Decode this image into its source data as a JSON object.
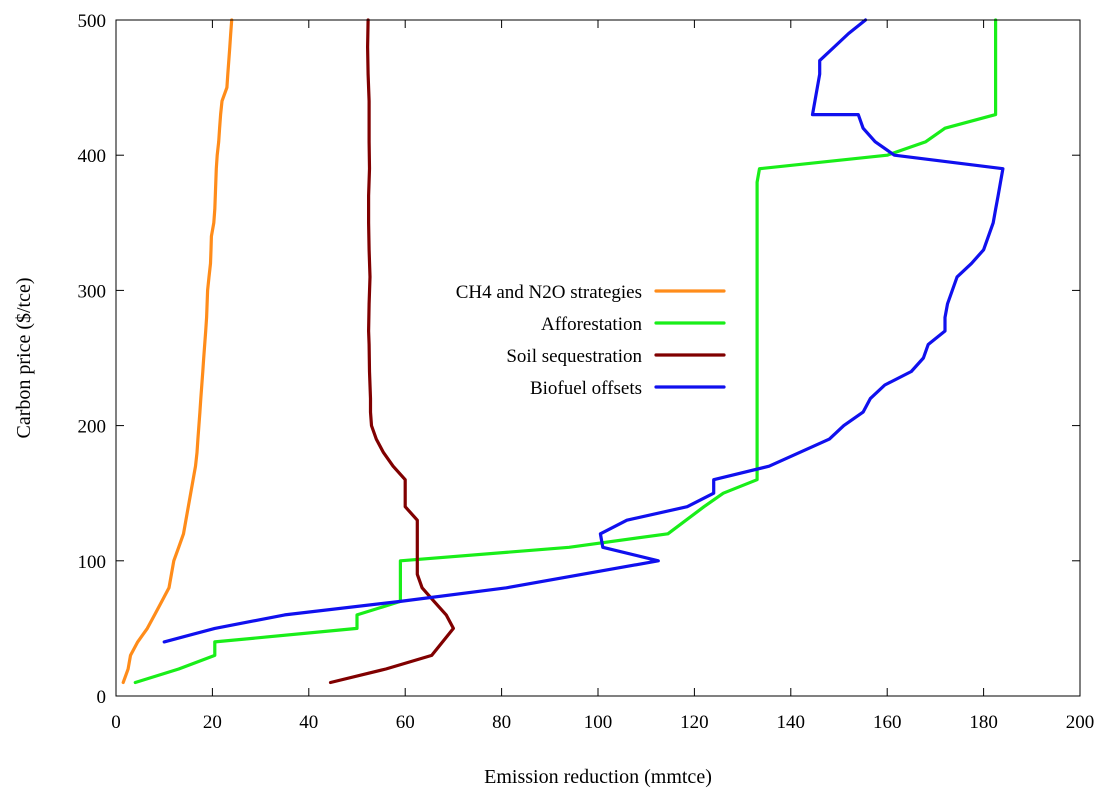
{
  "chart_data": {
    "type": "line",
    "xlabel": "Emission reduction (mmtce)",
    "ylabel": "Carbon price ($/tce)",
    "xlim": [
      0,
      200
    ],
    "ylim": [
      0,
      500
    ],
    "xticks": [
      0,
      20,
      40,
      60,
      80,
      100,
      120,
      140,
      160,
      180,
      200
    ],
    "yticks": [
      0,
      100,
      200,
      300,
      400,
      500
    ],
    "grid": false,
    "legend_position": "center",
    "series": [
      {
        "name": "CH4 and N2O strategies",
        "color": "#ff8c1a",
        "points": [
          [
            1.5,
            10
          ],
          [
            2.5,
            20
          ],
          [
            3.0,
            30
          ],
          [
            4.5,
            40
          ],
          [
            6.5,
            50
          ],
          [
            8.0,
            60
          ],
          [
            9.5,
            70
          ],
          [
            11.0,
            80
          ],
          [
            11.5,
            90
          ],
          [
            12.0,
            100
          ],
          [
            13.0,
            110
          ],
          [
            14.0,
            120
          ],
          [
            14.5,
            130
          ],
          [
            15.0,
            140
          ],
          [
            15.5,
            150
          ],
          [
            16.0,
            160
          ],
          [
            16.5,
            170
          ],
          [
            16.8,
            180
          ],
          [
            17.0,
            190
          ],
          [
            17.2,
            200
          ],
          [
            17.4,
            210
          ],
          [
            17.6,
            220
          ],
          [
            17.8,
            230
          ],
          [
            18.0,
            240
          ],
          [
            18.2,
            250
          ],
          [
            18.4,
            260
          ],
          [
            18.6,
            270
          ],
          [
            18.8,
            280
          ],
          [
            18.9,
            290
          ],
          [
            19.0,
            300
          ],
          [
            19.3,
            310
          ],
          [
            19.6,
            320
          ],
          [
            19.7,
            330
          ],
          [
            19.8,
            340
          ],
          [
            20.3,
            350
          ],
          [
            20.5,
            360
          ],
          [
            20.6,
            370
          ],
          [
            20.7,
            380
          ],
          [
            20.8,
            390
          ],
          [
            21.0,
            400
          ],
          [
            21.3,
            410
          ],
          [
            21.5,
            420
          ],
          [
            21.7,
            430
          ],
          [
            22.0,
            440
          ],
          [
            23.0,
            450
          ],
          [
            23.2,
            460
          ],
          [
            23.4,
            470
          ],
          [
            23.6,
            480
          ],
          [
            23.8,
            490
          ],
          [
            24.0,
            500
          ]
        ]
      },
      {
        "name": "Afforestation",
        "color": "#19ee19",
        "points": [
          [
            4.0,
            10
          ],
          [
            13.0,
            20
          ],
          [
            20.5,
            30
          ],
          [
            20.5,
            40
          ],
          [
            50.0,
            50
          ],
          [
            50.0,
            60
          ],
          [
            59.0,
            70
          ],
          [
            59.0,
            100
          ],
          [
            94.0,
            110
          ],
          [
            114.5,
            120
          ],
          [
            122.0,
            140
          ],
          [
            126.0,
            150
          ],
          [
            133.0,
            160
          ],
          [
            133.0,
            380
          ],
          [
            133.5,
            390
          ],
          [
            160.0,
            400
          ],
          [
            168.0,
            410
          ],
          [
            172.0,
            420
          ],
          [
            182.5,
            430
          ],
          [
            182.5,
            500
          ]
        ]
      },
      {
        "name": "Soil sequestration",
        "color": "#800000",
        "points": [
          [
            44.5,
            10
          ],
          [
            56.0,
            20
          ],
          [
            65.5,
            30
          ],
          [
            70.0,
            50
          ],
          [
            68.5,
            60
          ],
          [
            66.0,
            70
          ],
          [
            63.5,
            80
          ],
          [
            62.5,
            90
          ],
          [
            62.5,
            110
          ],
          [
            62.5,
            130
          ],
          [
            60.0,
            140
          ],
          [
            60.0,
            160
          ],
          [
            57.5,
            170
          ],
          [
            55.5,
            180
          ],
          [
            54.0,
            190
          ],
          [
            53.0,
            200
          ],
          [
            52.8,
            210
          ],
          [
            52.8,
            220
          ],
          [
            52.6,
            240
          ],
          [
            52.5,
            260
          ],
          [
            52.4,
            270
          ],
          [
            52.5,
            290
          ],
          [
            52.7,
            310
          ],
          [
            52.5,
            330
          ],
          [
            52.4,
            350
          ],
          [
            52.4,
            370
          ],
          [
            52.6,
            390
          ],
          [
            52.5,
            410
          ],
          [
            52.5,
            440
          ],
          [
            52.3,
            460
          ],
          [
            52.2,
            480
          ],
          [
            52.3,
            500
          ]
        ]
      },
      {
        "name": "Biofuel offsets",
        "color": "#1010ee",
        "points": [
          [
            10.0,
            40
          ],
          [
            20.5,
            50
          ],
          [
            35.0,
            60
          ],
          [
            59.0,
            70
          ],
          [
            81.0,
            80
          ],
          [
            112.5,
            100
          ],
          [
            101.0,
            110
          ],
          [
            100.5,
            120
          ],
          [
            106.0,
            130
          ],
          [
            118.5,
            140
          ],
          [
            124.0,
            150
          ],
          [
            124.0,
            160
          ],
          [
            135.5,
            170
          ],
          [
            148.0,
            190
          ],
          [
            151.0,
            200
          ],
          [
            155.0,
            210
          ],
          [
            156.5,
            220
          ],
          [
            159.5,
            230
          ],
          [
            165.0,
            240
          ],
          [
            167.5,
            250
          ],
          [
            168.5,
            260
          ],
          [
            172.0,
            270
          ],
          [
            172.0,
            280
          ],
          [
            172.5,
            290
          ],
          [
            173.5,
            300
          ],
          [
            174.5,
            310
          ],
          [
            177.5,
            320
          ],
          [
            180.0,
            330
          ],
          [
            181.0,
            340
          ],
          [
            182.0,
            350
          ],
          [
            182.5,
            360
          ],
          [
            183.0,
            370
          ],
          [
            183.5,
            380
          ],
          [
            184.0,
            390
          ],
          [
            161.5,
            400
          ],
          [
            157.5,
            410
          ],
          [
            155.0,
            420
          ],
          [
            154.0,
            430
          ],
          [
            144.5,
            430
          ],
          [
            145.0,
            440
          ],
          [
            145.5,
            450
          ],
          [
            146.0,
            460
          ],
          [
            146.0,
            470
          ],
          [
            149.0,
            480
          ],
          [
            152.0,
            490
          ],
          [
            155.5,
            500
          ]
        ]
      }
    ]
  }
}
